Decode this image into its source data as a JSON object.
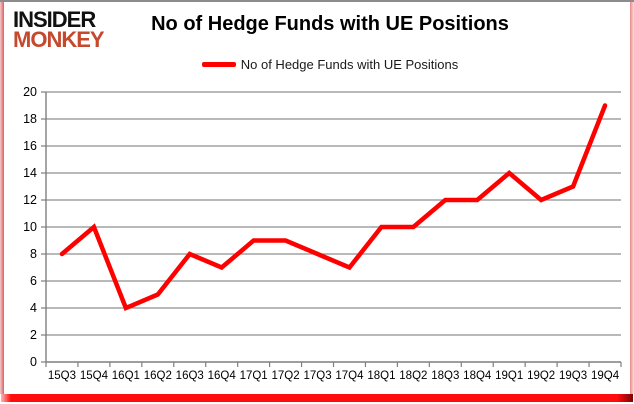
{
  "logo": {
    "line1": "INSIDER",
    "line2": "MONKEY",
    "line2_color": "#c6492e"
  },
  "header": {
    "title": "No of Hedge Funds with UE Positions"
  },
  "legend": {
    "label": "No of Hedge Funds with UE Positions"
  },
  "chart_data": {
    "type": "line",
    "title": "No of Hedge Funds with UE Positions",
    "categories": [
      "15Q3",
      "15Q4",
      "16Q1",
      "16Q2",
      "16Q3",
      "16Q4",
      "17Q1",
      "17Q2",
      "17Q3",
      "17Q4",
      "18Q1",
      "18Q2",
      "18Q3",
      "18Q4",
      "19Q1",
      "19Q2",
      "19Q3",
      "19Q4"
    ],
    "series": [
      {
        "name": "No of Hedge Funds with UE Positions",
        "values": [
          8,
          10,
          4,
          5,
          8,
          7,
          9,
          9,
          8,
          7,
          10,
          10,
          12,
          12,
          14,
          12,
          13,
          19
        ],
        "color": "#ff0000"
      }
    ],
    "xlabel": "",
    "ylabel": "",
    "ylim": [
      0,
      20
    ],
    "y_tick_step": 2,
    "grid": true,
    "legend_position": "top",
    "grid_color": "#8f8f8f",
    "axis_color": "#7f7f7f",
    "tick_label_color": "#000000"
  }
}
